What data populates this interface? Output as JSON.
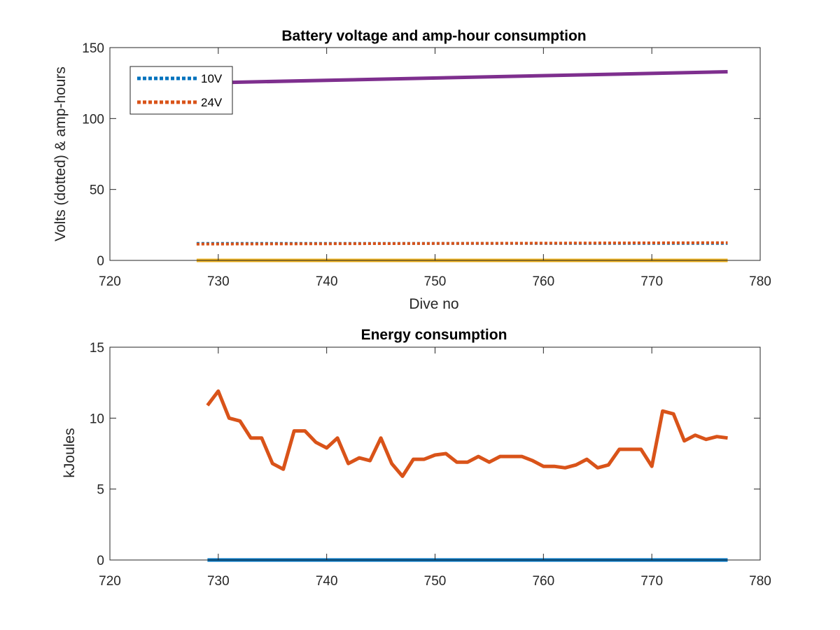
{
  "colors": {
    "blue": "#0072BD",
    "orange": "#D95319",
    "yellow": "#EDB120",
    "purple": "#7E2F8E",
    "axis": "#262626"
  },
  "chart_data": [
    {
      "type": "line",
      "title": "Battery voltage and amp-hour consumption",
      "xlabel": "Dive no",
      "ylabel": "Volts (dotted) & amp-hours",
      "xlim": [
        720,
        780
      ],
      "ylim": [
        0,
        150
      ],
      "xticks": [
        720,
        730,
        740,
        750,
        760,
        770,
        780
      ],
      "yticks": [
        0,
        50,
        100,
        150
      ],
      "grid": false,
      "legend": {
        "placement": "top-left",
        "entries": [
          "10V",
          "24V"
        ]
      },
      "series": [
        {
          "name": "10V",
          "style": "dotted",
          "color": "#0072BD",
          "x": [
            728,
            777
          ],
          "y": [
            12,
            12
          ]
        },
        {
          "name": "24V",
          "style": "dotted",
          "color": "#D95319",
          "x": [
            728,
            777
          ],
          "y": [
            11.5,
            12.5
          ]
        },
        {
          "style": "solid",
          "color": "#EDB120",
          "x": [
            728,
            777
          ],
          "y": [
            0,
            0
          ]
        },
        {
          "style": "solid",
          "color": "#7E2F8E",
          "x": [
            728,
            777
          ],
          "y": [
            125,
            133
          ]
        }
      ]
    },
    {
      "type": "line",
      "title": "Energy consumption",
      "xlabel": "",
      "ylabel": "kJoules",
      "xlim": [
        720,
        780
      ],
      "ylim": [
        0,
        15
      ],
      "xticks": [
        720,
        730,
        740,
        750,
        760,
        770,
        780
      ],
      "yticks": [
        0,
        5,
        10,
        15
      ],
      "grid": false,
      "series": [
        {
          "style": "solid",
          "color": "#0072BD",
          "x": [
            729,
            777
          ],
          "y": [
            0,
            0
          ]
        },
        {
          "style": "solid",
          "color": "#D95319",
          "x": [
            729,
            730,
            731,
            732,
            733,
            734,
            735,
            736,
            737,
            738,
            739,
            740,
            741,
            742,
            743,
            744,
            745,
            746,
            747,
            748,
            749,
            750,
            751,
            752,
            753,
            754,
            755,
            756,
            757,
            758,
            759,
            760,
            761,
            762,
            763,
            764,
            765,
            766,
            767,
            768,
            769,
            770,
            771,
            772,
            773,
            774,
            775,
            776,
            777
          ],
          "y": [
            10.9,
            11.9,
            10.0,
            9.8,
            8.6,
            8.6,
            6.8,
            6.4,
            9.1,
            9.1,
            8.3,
            7.9,
            8.6,
            6.8,
            7.2,
            7.0,
            8.6,
            6.8,
            5.9,
            7.1,
            7.1,
            7.4,
            7.5,
            6.9,
            6.9,
            7.3,
            6.9,
            7.3,
            7.3,
            7.3,
            7.0,
            6.6,
            6.6,
            6.5,
            6.7,
            7.1,
            6.5,
            6.7,
            7.8,
            7.8,
            7.8,
            6.6,
            10.5,
            10.3,
            8.4,
            8.8,
            8.5,
            8.7,
            8.6
          ]
        }
      ]
    }
  ]
}
